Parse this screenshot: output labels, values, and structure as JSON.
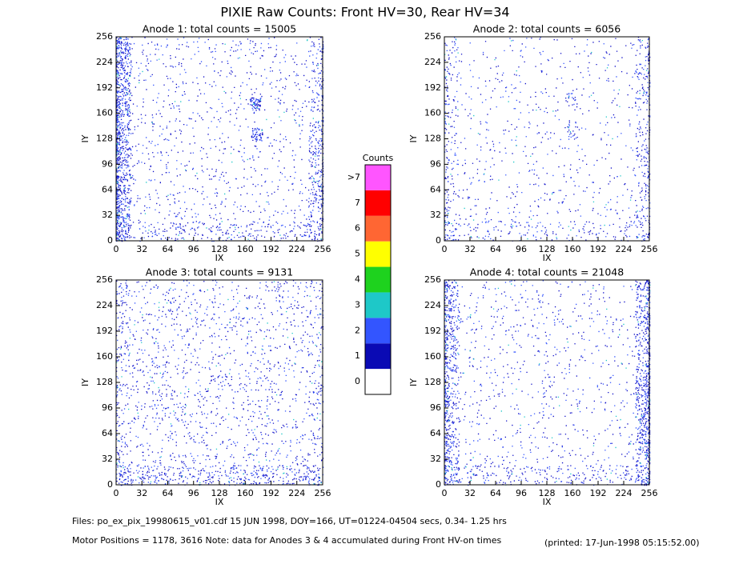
{
  "title": "PIXIE Raw Counts:  Front HV=30, Rear HV=34",
  "chart_data": [
    {
      "type": "heatmap",
      "title": "Anode 1: total counts = 15005",
      "x_label": "IX",
      "y_label": "IY",
      "xlim": [
        0,
        256
      ],
      "ylim": [
        0,
        256
      ],
      "xticks": [
        0,
        32,
        64,
        96,
        128,
        160,
        192,
        224,
        256
      ],
      "yticks": [
        0,
        32,
        64,
        96,
        128,
        160,
        192,
        224,
        256
      ]
    },
    {
      "type": "heatmap",
      "title": "Anode 2: total counts = 6056",
      "x_label": "IX",
      "y_label": "IY",
      "xlim": [
        0,
        256
      ],
      "ylim": [
        0,
        256
      ],
      "xticks": [
        0,
        32,
        64,
        96,
        128,
        160,
        192,
        224,
        256
      ],
      "yticks": [
        0,
        32,
        64,
        96,
        128,
        160,
        192,
        224,
        256
      ]
    },
    {
      "type": "heatmap",
      "title": "Anode 3: total counts = 9131",
      "x_label": "IX",
      "y_label": "IY",
      "xlim": [
        0,
        256
      ],
      "ylim": [
        0,
        256
      ],
      "xticks": [
        0,
        32,
        64,
        96,
        128,
        160,
        192,
        224,
        256
      ],
      "yticks": [
        0,
        32,
        64,
        96,
        128,
        160,
        192,
        224,
        256
      ]
    },
    {
      "type": "heatmap",
      "title": "Anode 4: total counts = 21048",
      "x_label": "IX",
      "y_label": "IY",
      "xlim": [
        0,
        256
      ],
      "ylim": [
        0,
        256
      ],
      "xticks": [
        0,
        32,
        64,
        96,
        128,
        160,
        192,
        224,
        256
      ],
      "yticks": [
        0,
        32,
        64,
        96,
        128,
        160,
        192,
        224,
        256
      ]
    }
  ],
  "colorbar": {
    "title": "Counts",
    "ticks": [
      0,
      1,
      2,
      3,
      4,
      5,
      6,
      7,
      {
        "value": 8,
        "label": ">7"
      }
    ],
    "colors": [
      "#ffffff",
      "#0a0ab4",
      "#3355ff",
      "#1ec8c8",
      "#1ed21e",
      "#ffff00",
      "#ff6633",
      "#ff0000",
      "#ff55ff"
    ]
  },
  "footer": {
    "files": "Files: po_ex_pix_19980615_v01.cdf    15 JUN 1998, DOY=166, UT=01224-04504 secs,  0.34- 1.25 hrs",
    "motor": "Motor Positions = 1178, 3616   Note: data for Anodes 3 & 4 accumulated during Front HV-on times",
    "printed": "(printed: 17-Jun-1998 05:15:52.00)"
  }
}
